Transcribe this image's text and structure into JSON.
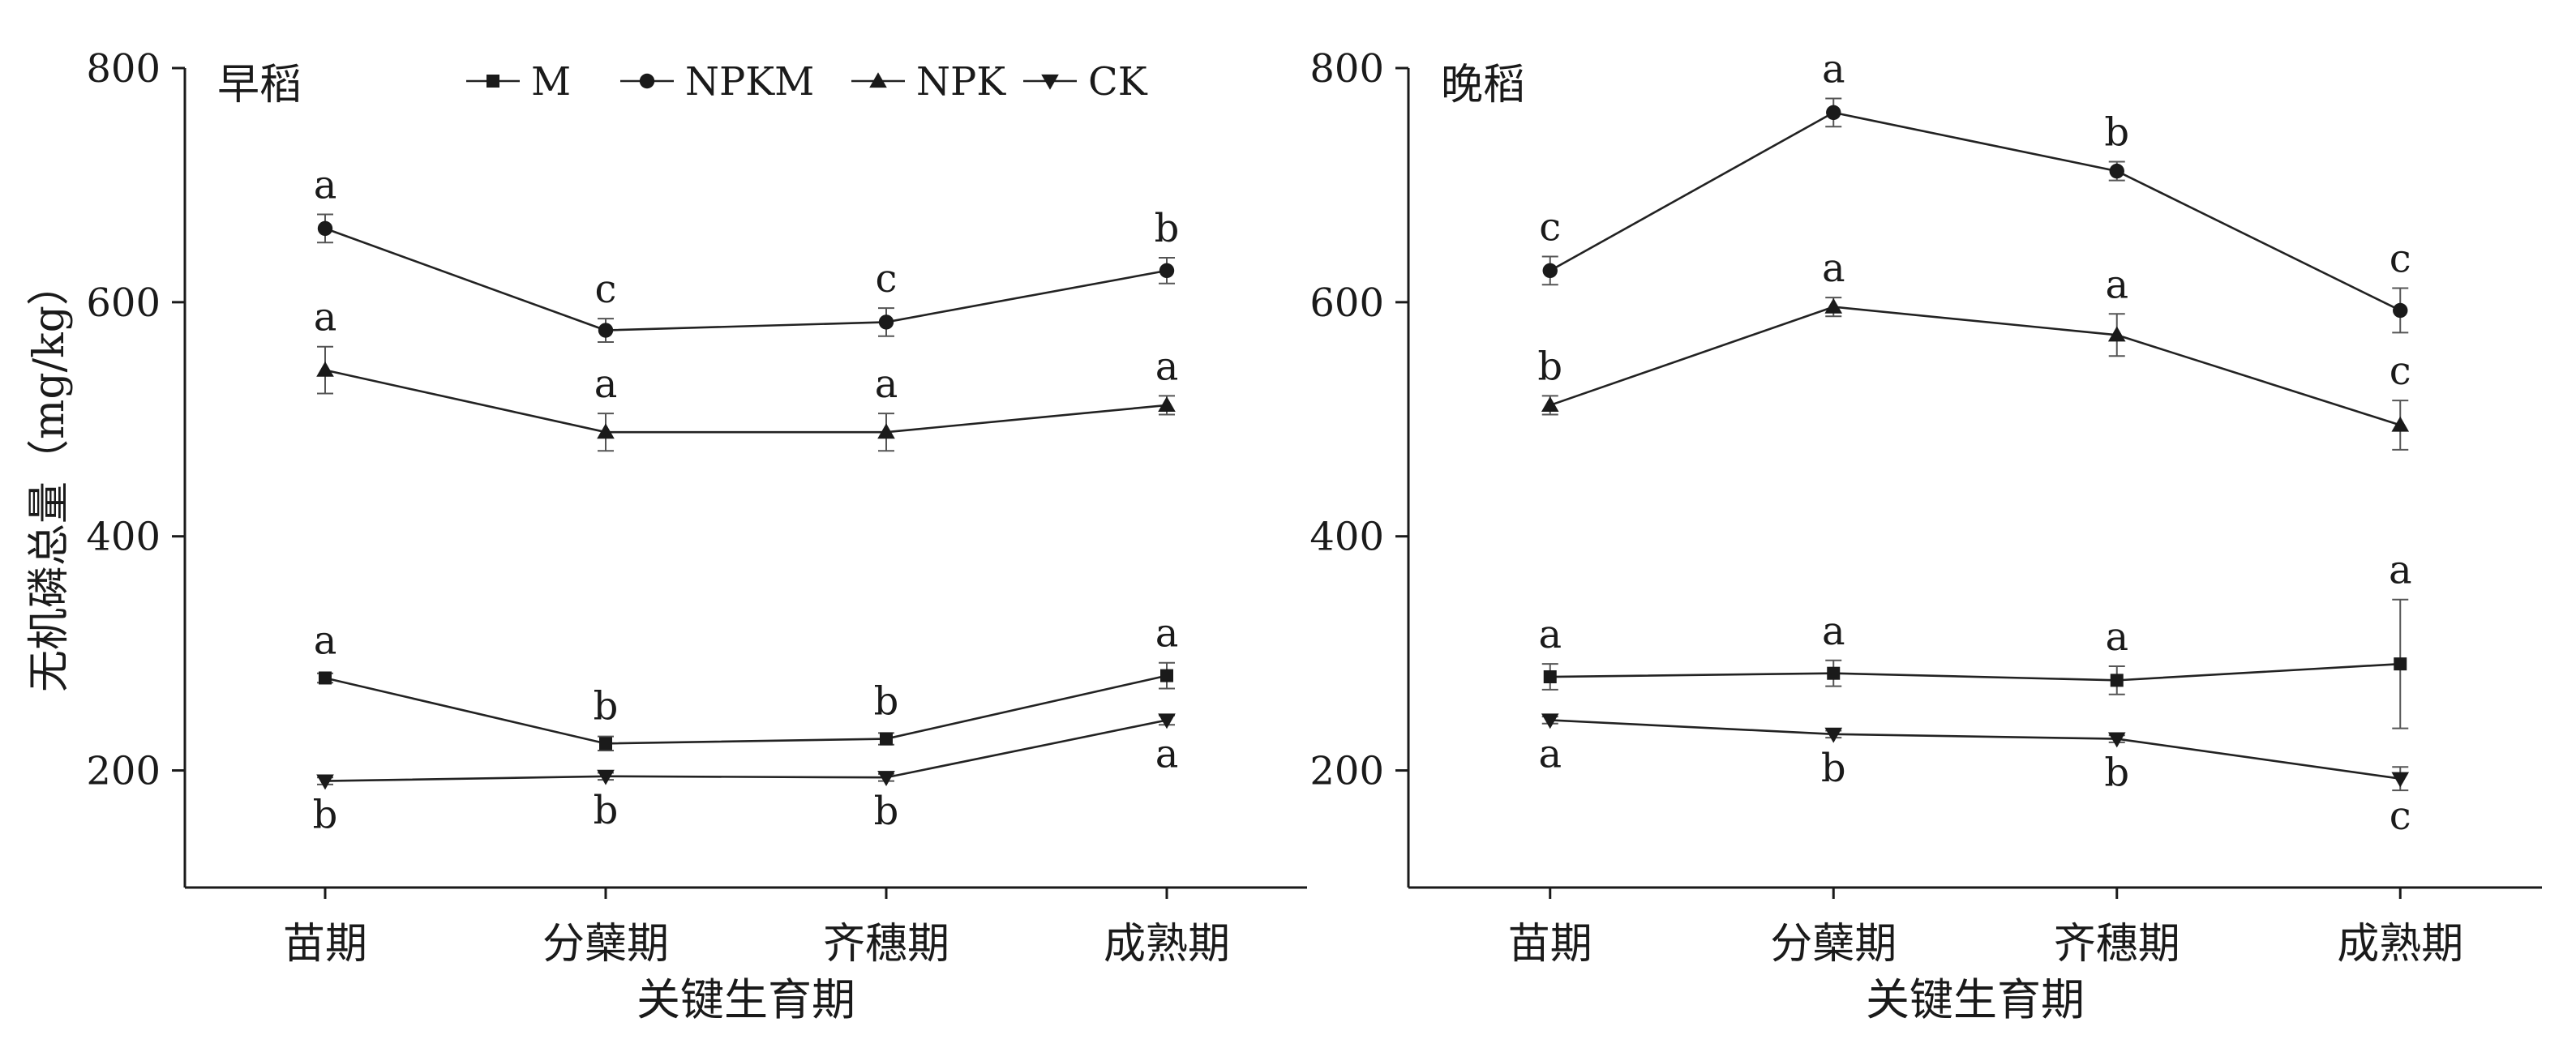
{
  "chart_data": [
    {
      "type": "line",
      "title": "早稻",
      "xlabel": "关键生育期",
      "ylabel": "无机磷总量（mg/kg）",
      "categories": [
        "苗期",
        "分蘖期",
        "齐穗期",
        "成熟期"
      ],
      "ylim": [
        100,
        800
      ],
      "yticks": [
        200,
        400,
        600,
        800
      ],
      "legend": {
        "placement": "top",
        "entries": [
          {
            "name": "M",
            "marker": "square"
          },
          {
            "name": "NPKM",
            "marker": "circle"
          },
          {
            "name": "NPK",
            "marker": "triangle-up"
          },
          {
            "name": "CK",
            "marker": "triangle-down"
          }
        ]
      },
      "series": [
        {
          "name": "M",
          "marker": "square",
          "values": [
            279,
            223,
            227,
            281
          ],
          "errors": [
            4,
            6,
            5,
            11
          ],
          "letters": [
            "a",
            "b",
            "b",
            "a"
          ],
          "letter_side": [
            "above",
            "above",
            "above",
            "above"
          ]
        },
        {
          "name": "NPKM",
          "marker": "circle",
          "values": [
            663,
            576,
            583,
            627
          ],
          "errors": [
            12,
            10,
            12,
            11
          ],
          "letters": [
            "a",
            "c",
            "c",
            "b"
          ],
          "letter_side": [
            "above",
            "above",
            "above",
            "above"
          ]
        },
        {
          "name": "NPK",
          "marker": "triangle-up",
          "values": [
            542,
            489,
            489,
            512
          ],
          "errors": [
            20,
            16,
            16,
            8
          ],
          "letters": [
            "a",
            "a",
            "a",
            "a"
          ],
          "letter_side": [
            "above",
            "above",
            "above",
            "above"
          ]
        },
        {
          "name": "CK",
          "marker": "triangle-down",
          "values": [
            191,
            195,
            194,
            243
          ],
          "errors": [
            3,
            3,
            3,
            4
          ],
          "letters": [
            "b",
            "b",
            "b",
            "a"
          ],
          "letter_side": [
            "below",
            "below",
            "below",
            "below"
          ]
        }
      ]
    },
    {
      "type": "line",
      "title": "晚稻",
      "xlabel": "关键生育期",
      "ylabel": "",
      "categories": [
        "苗期",
        "分蘖期",
        "齐穗期",
        "成熟期"
      ],
      "ylim": [
        100,
        800
      ],
      "yticks": [
        200,
        400,
        600,
        800
      ],
      "series": [
        {
          "name": "M",
          "marker": "square",
          "values": [
            280,
            283,
            277,
            291
          ],
          "errors": [
            11,
            11,
            12,
            55
          ],
          "letters": [
            "a",
            "a",
            "a",
            "a"
          ],
          "letter_side": [
            "above",
            "above",
            "above",
            "above"
          ]
        },
        {
          "name": "NPKM",
          "marker": "circle",
          "values": [
            627,
            762,
            712,
            593
          ],
          "errors": [
            12,
            12,
            8,
            19
          ],
          "letters": [
            "c",
            "a",
            "b",
            "c"
          ],
          "letter_side": [
            "above",
            "above",
            "above",
            "above"
          ]
        },
        {
          "name": "NPK",
          "marker": "triangle-up",
          "values": [
            512,
            596,
            572,
            495
          ],
          "errors": [
            8,
            8,
            18,
            21
          ],
          "letters": [
            "b",
            "a",
            "a",
            "c"
          ],
          "letter_side": [
            "above",
            "above",
            "above",
            "above"
          ]
        },
        {
          "name": "CK",
          "marker": "triangle-down",
          "values": [
            243,
            231,
            227,
            193
          ],
          "errors": [
            3,
            3,
            3,
            10
          ],
          "letters": [
            "a",
            "b",
            "b",
            "c"
          ],
          "letter_side": [
            "below",
            "below",
            "below",
            "below"
          ]
        }
      ]
    }
  ]
}
